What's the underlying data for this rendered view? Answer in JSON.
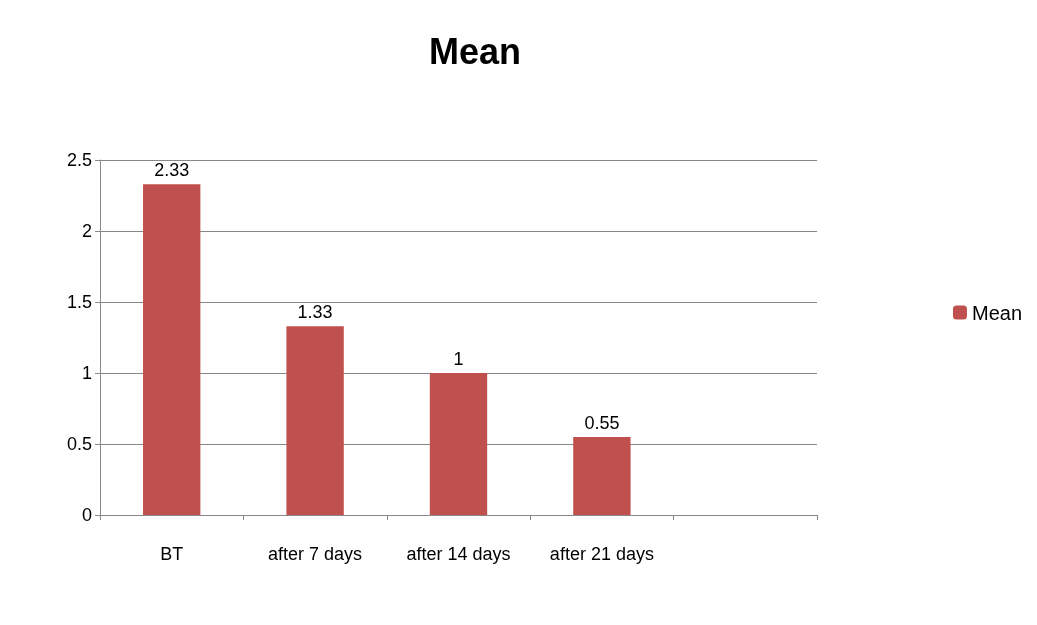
{
  "chart_data": {
    "type": "bar",
    "title": "Mean",
    "categories": [
      "BT",
      "after 7 days",
      "after 14 days",
      "after 21 days",
      null
    ],
    "series": [
      {
        "name": "Mean",
        "color": "#c0504d",
        "values": [
          2.33,
          1.33,
          1,
          0.55,
          null
        ]
      }
    ],
    "ylim": [
      0,
      2.5
    ],
    "yticks": [
      0,
      0.5,
      1,
      1.5,
      2,
      2.5
    ],
    "grid": "y",
    "legend": "right",
    "data_labels": true
  }
}
